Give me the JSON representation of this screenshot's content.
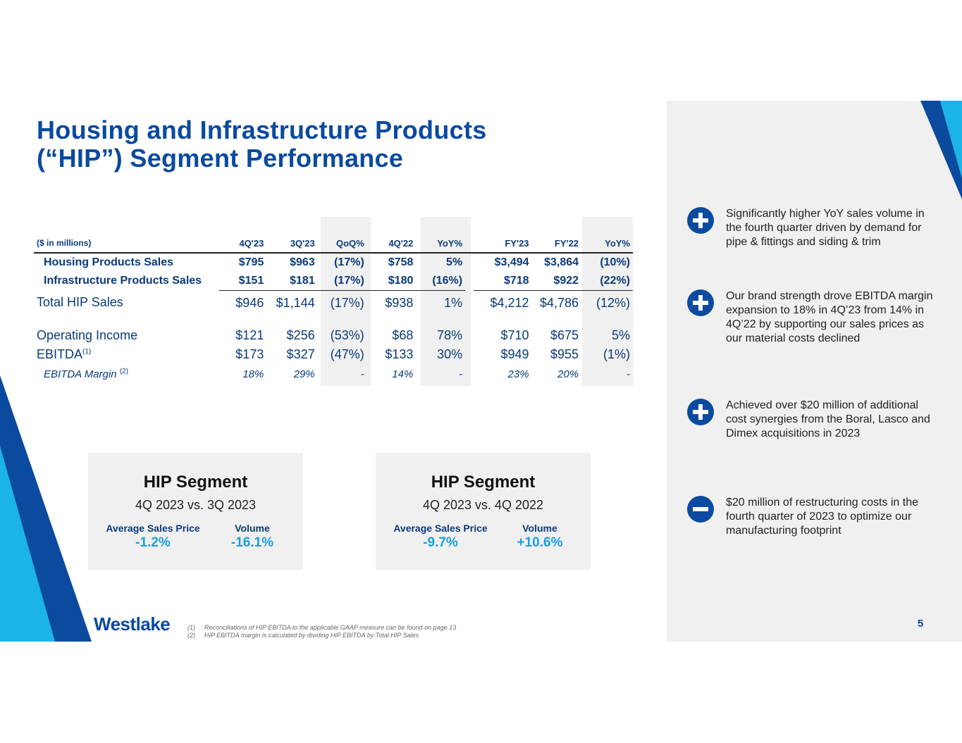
{
  "title": {
    "line1": "Housing and Infrastructure Products",
    "line2": "(“HIP”) Segment Performance"
  },
  "table": {
    "unit_label": "($ in millions)",
    "columns": [
      "4Q'23",
      "3Q'23",
      "QoQ%",
      "4Q'22",
      "YoY%",
      "FY'23",
      "FY'22",
      "YoY%"
    ],
    "rows": {
      "housing": {
        "label": "Housing Products Sales",
        "values": [
          "$795",
          "$963",
          "(17%)",
          "$758",
          "5%",
          "$3,494",
          "$3,864",
          "(10%)"
        ]
      },
      "infra": {
        "label": "Infrastructure Products Sales",
        "values": [
          "$151",
          "$181",
          "(17%)",
          "$180",
          "(16%)",
          "$718",
          "$922",
          "(22%)"
        ]
      },
      "total": {
        "label": "Total HIP Sales",
        "values": [
          "$946",
          "$1,144",
          "(17%)",
          "$938",
          "1%",
          "$4,212",
          "$4,786",
          "(12%)"
        ]
      },
      "opinc": {
        "label": "Operating Income",
        "values": [
          "$121",
          "$256",
          "(53%)",
          "$68",
          "78%",
          "$710",
          "$675",
          "5%"
        ]
      },
      "ebitda": {
        "label": "EBITDA",
        "sup": "(1)",
        "values": [
          "$173",
          "$327",
          "(47%)",
          "$133",
          "30%",
          "$949",
          "$955",
          "(1%)"
        ]
      },
      "margin": {
        "label": "EBITDA Margin",
        "sup": "(2)",
        "values": [
          "18%",
          "29%",
          "-",
          "14%",
          "-",
          "23%",
          "20%",
          "-"
        ]
      }
    }
  },
  "boxes": [
    {
      "title": "HIP Segment",
      "subtitle": "4Q 2023 vs. 3Q 2023",
      "m1_label": "Average Sales Price",
      "m1_value": "-1.2%",
      "m2_label": "Volume",
      "m2_value": "-16.1%"
    },
    {
      "title": "HIP Segment",
      "subtitle": "4Q 2023 vs. 4Q 2022",
      "m1_label": "Average Sales Price",
      "m1_value": "-9.7%",
      "m2_label": "Volume",
      "m2_value": "+10.6%"
    }
  ],
  "bullets": [
    {
      "icon": "plus-icon",
      "text": "Significantly higher YoY sales volume in the fourth quarter driven by demand for pipe & fittings and siding & trim"
    },
    {
      "icon": "plus-icon",
      "text": "Our brand strength drove EBITDA margin expansion to 18% in 4Q’23 from 14% in 4Q’22 by supporting our sales prices as our material costs declined"
    },
    {
      "icon": "plus-icon",
      "text": "Achieved over $20 million of additional cost synergies from the Boral, Lasco and Dimex acquisitions in 2023"
    },
    {
      "icon": "minus-icon",
      "text": "$20 million of restructuring costs in the fourth quarter of 2023 to optimize our manufacturing footprint"
    }
  ],
  "logo": "Westlake",
  "footnotes": [
    {
      "num": "(1)",
      "text": "Reconciliations of HIP EBITDA to the applicable GAAP measure can be found on page 13"
    },
    {
      "num": "(2)",
      "text": "HIP EBITDA margin is calculated by dividing HIP EBITDA by Total HIP Sales"
    }
  ],
  "page_number": "5",
  "colors": {
    "brand_blue": "#0a4a9f",
    "accent_cyan": "#1aa0e0",
    "panel_gray": "#f0f0f0"
  }
}
